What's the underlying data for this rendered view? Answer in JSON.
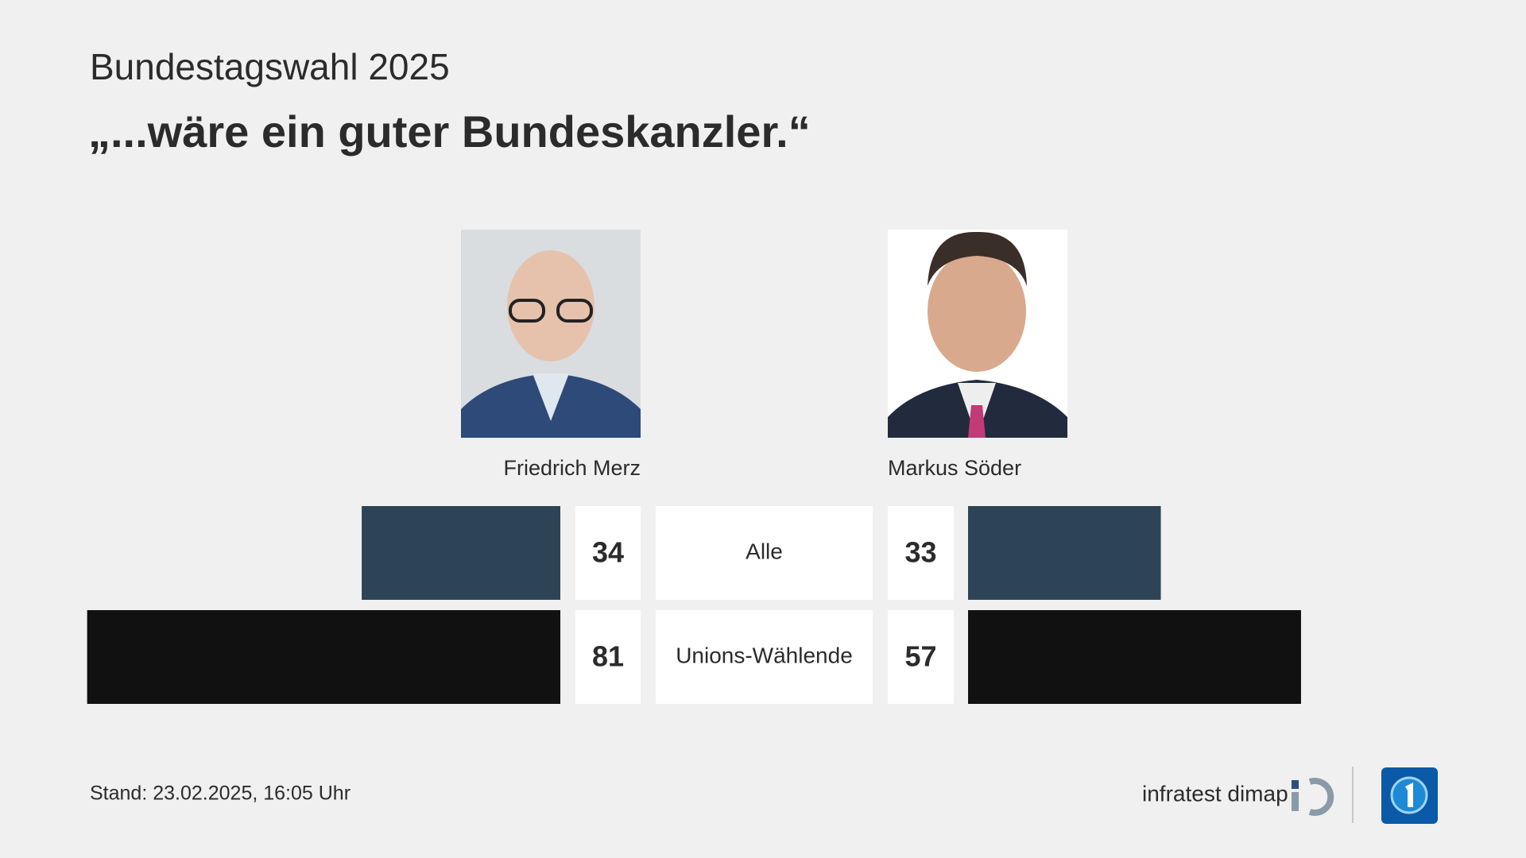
{
  "chart_data": {
    "type": "bar",
    "title": "Bundestagswahl 2025",
    "subtitle": "„...wäre ein guter Bundeskanzler.“",
    "categories": [
      "Alle",
      "Unions-Wählende"
    ],
    "colors": [
      "#2c4456",
      "#111111"
    ],
    "series": [
      {
        "name": "Friedrich Merz",
        "values": [
          34,
          81
        ]
      },
      {
        "name": "Markus Söder",
        "values": [
          33,
          57
        ]
      }
    ],
    "footer": "Stand:  23.02.2025, 16:05 Uhr",
    "source": "infratest dimap"
  }
}
